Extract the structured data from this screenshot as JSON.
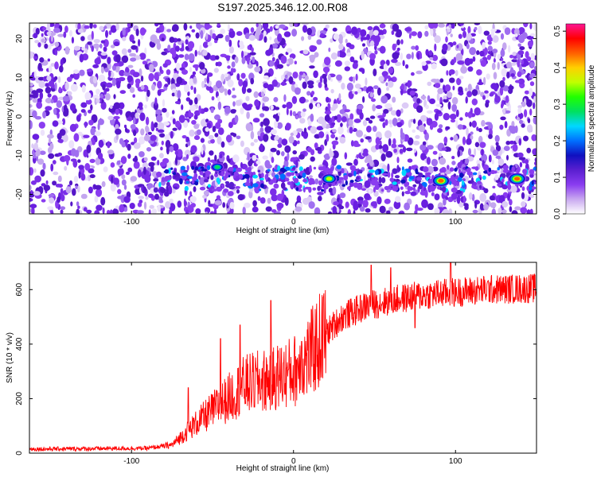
{
  "chart_data": [
    {
      "type": "heatmap",
      "title": "S197.2025.346.12.00.R08",
      "xlabel": "Height of straight line (km)",
      "ylabel": "Frequency (Hz)",
      "xlim": [
        -163,
        150
      ],
      "ylim": [
        -25,
        24
      ],
      "xticks": [
        -100,
        0,
        100
      ],
      "yticks": [
        -20,
        -10,
        0,
        10,
        20
      ],
      "colorbar": {
        "label": "Normalized spectral amplitude",
        "range": [
          0.0,
          0.52
        ],
        "ticks": [
          0.0,
          0.1,
          0.2,
          0.3,
          0.4,
          0.5
        ],
        "colors": [
          "#ffffff",
          "#c9a8f0",
          "#8a3cf0",
          "#5a1fd0",
          "#1010c0",
          "#0070ff",
          "#00d8ff",
          "#00e060",
          "#20ff00",
          "#c0ff00",
          "#ffd000",
          "#ff6000",
          "#ff0000",
          "#ff1493"
        ]
      },
      "signal_band_hz": -16,
      "peaks": [
        {
          "x": -47,
          "y": -13,
          "amp": 0.35
        },
        {
          "x": 22,
          "y": -16,
          "amp": 0.42
        },
        {
          "x": 91,
          "y": -16.5,
          "amp": 0.44
        },
        {
          "x": 138,
          "y": -16,
          "amp": 0.5
        }
      ]
    },
    {
      "type": "line",
      "title": "",
      "xlabel": "Height of straight line (km)",
      "ylabel": "SNR (10 * v/v)",
      "xlim": [
        -163,
        150
      ],
      "ylim": [
        0,
        700
      ],
      "xticks": [
        -100,
        0,
        100
      ],
      "yticks": [
        0,
        200,
        400,
        600
      ],
      "series": [
        {
          "color": "#ff0000",
          "trend": {
            "x": [
              -163,
              -90,
              -75,
              -60,
              -45,
              -30,
              -15,
              0,
              10,
              20,
              30,
              45,
              60,
              80,
              100,
              120,
              150
            ],
            "y": [
              15,
              18,
              30,
              110,
              180,
              250,
              270,
              300,
              360,
              440,
              500,
              540,
              560,
              580,
              590,
              600,
              605
            ]
          },
          "spikes": [
            {
              "x": -65,
              "y": 240
            },
            {
              "x": -45,
              "y": 420
            },
            {
              "x": -33,
              "y": 470
            },
            {
              "x": -14,
              "y": 560
            },
            {
              "x": 5,
              "y": 410
            },
            {
              "x": 48,
              "y": 690
            },
            {
              "x": 60,
              "y": 680
            },
            {
              "x": 75,
              "y": 460
            },
            {
              "x": 97,
              "y": 700
            }
          ]
        }
      ]
    }
  ]
}
